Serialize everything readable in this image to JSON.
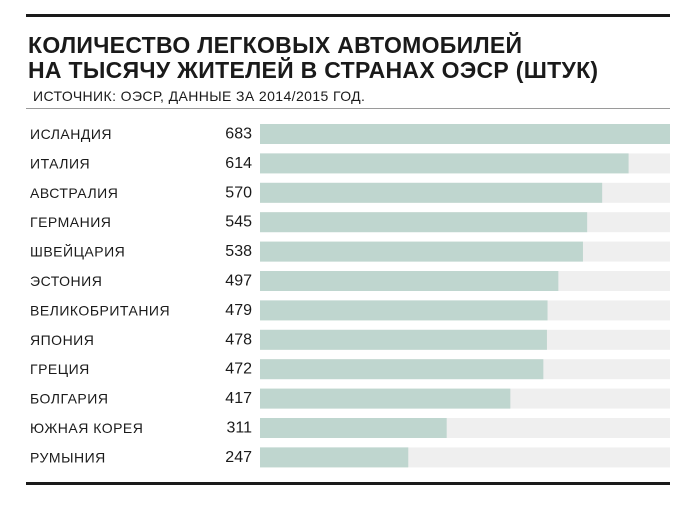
{
  "chart_data": {
    "type": "bar",
    "orientation": "horizontal",
    "title_lines": [
      "КОЛИЧЕСТВО ЛЕГКОВЫХ АВТОМОБИЛЕЙ",
      "НА ТЫСЯЧУ ЖИТЕЛЕЙ В СТРАНАХ ОЭСР (ШТУК)"
    ],
    "subtitle": "ИСТОЧНИК: ОЭСР, ДАННЫЕ ЗА 2014/2015 ГОД.",
    "categories": [
      "ИСЛАНДИЯ",
      "ИТАЛИЯ",
      "АВСТРАЛИЯ",
      "ГЕРМАНИЯ",
      "ШВЕЙЦАРИЯ",
      "ЭСТОНИЯ",
      "ВЕЛИКОБРИТАНИЯ",
      "ЯПОНИЯ",
      "ГРЕЦИЯ",
      "БОЛГАРИЯ",
      "ЮЖНАЯ КОРЕЯ",
      "РУМЫНИЯ"
    ],
    "values": [
      683,
      614,
      570,
      545,
      538,
      497,
      479,
      478,
      472,
      417,
      311,
      247
    ],
    "xlim": [
      0,
      683
    ],
    "colors": {
      "bar": "#bfd6cf",
      "track": "#efefef",
      "text": "#1a1a1a"
    }
  }
}
